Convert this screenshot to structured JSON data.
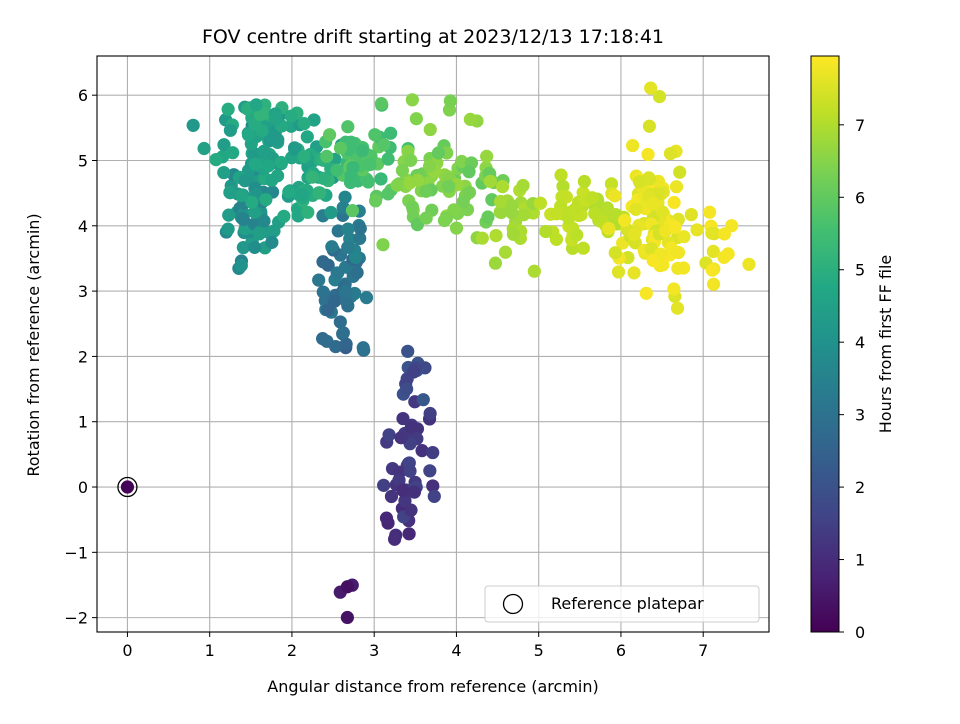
{
  "chart_data": {
    "type": "scatter",
    "title": "FOV centre drift starting at 2023/12/13 17:18:41",
    "xlabel": "Angular distance from reference (arcmin)",
    "ylabel": "Rotation from reference (arcmin)",
    "xlim": [
      -0.37,
      7.8
    ],
    "ylim": [
      -2.22,
      6.6
    ],
    "xticks": [
      0,
      1,
      2,
      3,
      4,
      5,
      6,
      7
    ],
    "yticks": [
      -2,
      -1,
      0,
      1,
      2,
      3,
      4,
      5,
      6
    ],
    "grid": true,
    "legend": {
      "position": "lower-right",
      "entries": [
        "Reference platepar"
      ]
    },
    "colorbar": {
      "label": "Hours from first FF file",
      "colormap": "viridis",
      "range": [
        0,
        7.95
      ],
      "ticks": [
        0,
        1,
        2,
        3,
        4,
        5,
        6,
        7
      ]
    },
    "reference_point": {
      "x": 0,
      "y": 0,
      "label": "Reference platepar"
    },
    "clusters": [
      {
        "hours": [
          0.05,
          0.05
        ],
        "cx": 0.0,
        "cy": 0.0,
        "sx": 0.0,
        "sy": 0.0,
        "n": 1
      },
      {
        "hours": [
          0.3,
          0.7
        ],
        "cx": 2.65,
        "cy": -1.6,
        "sx": 0.06,
        "sy": 0.25,
        "n": 4
      },
      {
        "hours": [
          0.7,
          1.1
        ],
        "cx": 3.2,
        "cy": -0.5,
        "sx": 0.22,
        "sy": 0.2,
        "n": 6
      },
      {
        "hours": [
          1.0,
          1.6
        ],
        "cx": 3.45,
        "cy": 0.4,
        "sx": 0.18,
        "sy": 0.5,
        "n": 40
      },
      {
        "hours": [
          1.5,
          2.2
        ],
        "cx": 3.5,
        "cy": 1.8,
        "sx": 0.12,
        "sy": 0.35,
        "n": 12
      },
      {
        "hours": [
          2.3,
          3.0
        ],
        "cx": 2.4,
        "cy": 2.2,
        "sx": 0.22,
        "sy": 0.12,
        "n": 8
      },
      {
        "hours": [
          2.6,
          3.4
        ],
        "cx": 2.6,
        "cy": 3.05,
        "sx": 0.13,
        "sy": 0.3,
        "n": 35
      },
      {
        "hours": [
          3.0,
          3.6
        ],
        "cx": 2.65,
        "cy": 3.9,
        "sx": 0.15,
        "sy": 0.25,
        "n": 15
      },
      {
        "hours": [
          3.5,
          4.5
        ],
        "cx": 1.55,
        "cy": 4.2,
        "sx": 0.16,
        "sy": 0.35,
        "n": 60
      },
      {
        "hours": [
          4.2,
          4.9
        ],
        "cx": 1.8,
        "cy": 5.1,
        "sx": 0.3,
        "sy": 0.35,
        "n": 80
      },
      {
        "hours": [
          4.5,
          5.2
        ],
        "cx": 2.2,
        "cy": 4.7,
        "sx": 0.15,
        "sy": 0.3,
        "n": 25
      },
      {
        "hours": [
          4.6,
          5.2
        ],
        "cx": 1.75,
        "cy": 5.8,
        "sx": 0.25,
        "sy": 0.2,
        "n": 15
      },
      {
        "hours": [
          5.3,
          6.0
        ],
        "cx": 2.8,
        "cy": 4.95,
        "sx": 0.25,
        "sy": 0.3,
        "n": 50
      },
      {
        "hours": [
          6.0,
          6.7
        ],
        "cx": 3.9,
        "cy": 4.6,
        "sx": 0.35,
        "sy": 0.35,
        "n": 75
      },
      {
        "hours": [
          6.3,
          6.7
        ],
        "cx": 3.8,
        "cy": 5.7,
        "sx": 0.2,
        "sy": 0.2,
        "n": 6
      },
      {
        "hours": [
          6.7,
          7.0
        ],
        "cx": 4.65,
        "cy": 4.1,
        "sx": 0.15,
        "sy": 0.4,
        "n": 25
      },
      {
        "hours": [
          7.0,
          7.3
        ],
        "cx": 5.4,
        "cy": 4.2,
        "sx": 0.2,
        "sy": 0.3,
        "n": 40
      },
      {
        "hours": [
          7.0,
          7.2
        ],
        "cx": 5.8,
        "cy": 4.3,
        "sx": 0.15,
        "sy": 0.2,
        "n": 10
      },
      {
        "hours": [
          7.4,
          7.9
        ],
        "cx": 6.35,
        "cy": 4.25,
        "sx": 0.22,
        "sy": 0.45,
        "n": 75
      },
      {
        "hours": [
          7.5,
          7.9
        ],
        "cx": 6.8,
        "cy": 3.7,
        "sx": 0.3,
        "sy": 0.35,
        "n": 20
      },
      {
        "hours": [
          7.6,
          7.9
        ],
        "cx": 7.25,
        "cy": 3.3,
        "sx": 0.15,
        "sy": 0.3,
        "n": 8
      },
      {
        "hours": [
          7.4,
          7.7
        ],
        "cx": 6.4,
        "cy": 5.4,
        "sx": 0.15,
        "sy": 0.3,
        "n": 5
      }
    ]
  }
}
